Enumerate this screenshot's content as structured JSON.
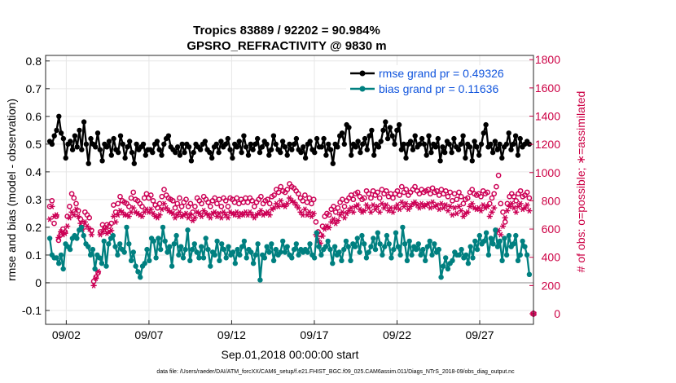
{
  "chart_data": {
    "type": "line",
    "title_line1": "Tropics 83889 / 92202 = 90.984%",
    "title_line2": "GPSRO_REFRACTIVITY @ 9830 m",
    "ylabel_left": "rmse and bias (model - observation)",
    "ylabel_right": "# of obs: o=possible; ∗=assimilated",
    "xlabel": "Sep.01,2018 00:00:00 start",
    "footer": "data file: /Users/raeder/DAI/ATM_forcXX/CAM6_setup/f.e21.FHIST_BGC.f09_025.CAM6assim.011/Diags_NTrS_2018-09/obs_diag_output.nc",
    "left_ylim": [
      -0.15,
      0.82
    ],
    "left_yticks": [
      "0.8",
      "0.7",
      "0.6",
      "0.5",
      "0.4",
      "0.3",
      "0.2",
      "0.1",
      "0",
      "-0.1"
    ],
    "left_ytick_values": [
      0.8,
      0.7,
      0.6,
      0.5,
      0.4,
      0.3,
      0.2,
      0.1,
      0,
      -0.1
    ],
    "right_ylim": [
      -75,
      1830
    ],
    "right_yticks": [
      "1800",
      "1600",
      "1400",
      "1200",
      "1000",
      "800",
      "600",
      "400",
      "200",
      "0"
    ],
    "right_ytick_values": [
      1800,
      1600,
      1400,
      1200,
      1000,
      800,
      600,
      400,
      200,
      0
    ],
    "xlim_days": [
      0.75,
      30.25
    ],
    "xticks": [
      "09/02",
      "09/07",
      "09/12",
      "09/17",
      "09/22",
      "09/27"
    ],
    "xtick_days": [
      2,
      7,
      12,
      17,
      22,
      27
    ],
    "grid": true,
    "legend_position": "top-right",
    "zero_line": 0,
    "series": [
      {
        "name": "rmse grand pr = 0.49326",
        "axis": "left",
        "color": "#000000",
        "marker": "dot",
        "values": [
          0.51,
          0.5,
          0.53,
          0.55,
          0.6,
          0.54,
          0.52,
          0.45,
          0.5,
          0.51,
          0.48,
          0.53,
          0.49,
          0.55,
          0.48,
          0.58,
          0.5,
          0.43,
          0.52,
          0.5,
          0.49,
          0.54,
          0.48,
          0.44,
          0.5,
          0.49,
          0.51,
          0.46,
          0.52,
          0.48,
          0.47,
          0.53,
          0.5,
          0.45,
          0.49,
          0.51,
          0.47,
          0.43,
          0.5,
          0.48,
          0.49,
          0.5,
          0.46,
          0.48,
          0.48,
          0.47,
          0.5,
          0.51,
          0.48,
          0.46,
          0.5,
          0.52,
          0.53,
          0.49,
          0.48,
          0.47,
          0.49,
          0.46,
          0.5,
          0.47,
          0.5,
          0.49,
          0.44,
          0.47,
          0.5,
          0.49,
          0.48,
          0.5,
          0.51,
          0.48,
          0.47,
          0.45,
          0.49,
          0.5,
          0.47,
          0.51,
          0.49,
          0.5,
          0.52,
          0.48,
          0.45,
          0.5,
          0.49,
          0.51,
          0.47,
          0.53,
          0.49,
          0.46,
          0.5,
          0.48,
          0.5,
          0.52,
          0.47,
          0.49,
          0.51,
          0.5,
          0.46,
          0.48,
          0.53,
          0.5,
          0.48,
          0.47,
          0.51,
          0.49,
          0.46,
          0.5,
          0.48,
          0.5,
          0.52,
          0.48,
          0.47,
          0.49,
          0.45,
          0.5,
          0.51,
          0.48,
          0.47,
          0.52,
          0.49,
          0.49,
          0.52,
          0.46,
          0.5,
          0.48,
          0.43,
          0.5,
          0.49,
          0.53,
          0.54,
          0.5,
          0.57,
          0.56,
          0.46,
          0.5,
          0.49,
          0.51,
          0.47,
          0.5,
          0.52,
          0.48,
          0.53,
          0.55,
          0.46,
          0.5,
          0.49,
          0.51,
          0.55,
          0.58,
          0.52,
          0.56,
          0.53,
          0.5,
          0.55,
          0.57,
          0.48,
          0.5,
          0.45,
          0.5,
          0.51,
          0.48,
          0.53,
          0.49,
          0.5,
          0.52,
          0.5,
          0.46,
          0.53,
          0.47,
          0.5,
          0.49,
          0.52,
          0.44,
          0.49,
          0.47,
          0.51,
          0.5,
          0.47,
          0.52,
          0.49,
          0.48,
          0.5,
          0.53,
          0.45,
          0.5,
          0.49,
          0.44,
          0.51,
          0.49,
          0.46,
          0.5,
          0.54,
          0.57,
          0.49,
          0.5,
          0.47,
          0.51,
          0.48,
          0.5,
          0.45,
          0.49,
          0.5,
          0.54,
          0.48,
          0.5,
          0.53,
          0.46,
          0.52,
          0.49,
          0.5,
          0.51,
          0.5
        ]
      },
      {
        "name": "bias grand pr = 0.11636",
        "axis": "left",
        "color": "#008080",
        "marker": "dot",
        "values": [
          0.16,
          0.1,
          0.09,
          0.09,
          0.07,
          0.1,
          0.05,
          0.14,
          0.13,
          0.12,
          0.16,
          0.17,
          0.16,
          0.19,
          0.2,
          0.17,
          0.14,
          0.13,
          0.1,
          0.12,
          0.05,
          0.1,
          0.09,
          0.07,
          0.15,
          0.06,
          0.14,
          0.16,
          0.17,
          0.13,
          0.1,
          0.14,
          0.12,
          0.11,
          0.2,
          0.14,
          0.08,
          0.11,
          0.06,
          0.04,
          0.02,
          0.06,
          0.07,
          0.12,
          0.08,
          0.16,
          0.15,
          0.09,
          0.16,
          0.12,
          0.2,
          0.15,
          0.11,
          0.13,
          0.06,
          0.14,
          0.17,
          0.1,
          0.13,
          0.09,
          0.12,
          0.19,
          0.08,
          0.12,
          0.14,
          0.11,
          0.09,
          0.13,
          0.09,
          0.16,
          0.12,
          0.06,
          0.11,
          0.1,
          0.15,
          0.08,
          0.14,
          0.12,
          0.09,
          0.13,
          0.1,
          0.11,
          0.07,
          0.12,
          0.1,
          0.13,
          0.15,
          0.09,
          0.12,
          0.11,
          0.07,
          0.1,
          0.14,
          0.01,
          0.1,
          0.09,
          0.13,
          0.11,
          0.14,
          0.08,
          0.12,
          0.1,
          0.11,
          0.15,
          0.11,
          0.13,
          0.1,
          0.09,
          0.12,
          0.14,
          0.1,
          0.12,
          0.11,
          0.12,
          0.11,
          0.14,
          0.1,
          0.09,
          0.18,
          0.13,
          0.1,
          0.12,
          0.13,
          0.15,
          0.12,
          0.07,
          0.13,
          0.1,
          0.11,
          0.08,
          0.12,
          0.15,
          0.13,
          0.08,
          0.14,
          0.13,
          0.16,
          0.11,
          0.17,
          0.14,
          0.09,
          0.11,
          0.13,
          0.16,
          0.12,
          0.18,
          0.14,
          0.1,
          0.13,
          0.17,
          0.14,
          0.09,
          0.12,
          0.18,
          0.13,
          0.1,
          0.2,
          0.14,
          0.08,
          0.15,
          0.1,
          0.13,
          0.12,
          0.14,
          0.1,
          0.12,
          0.08,
          0.13,
          0.15,
          0.1,
          0.14,
          0.11,
          0.12,
          0.02,
          0.06,
          0.09,
          0.05,
          0.07,
          0.08,
          0.11,
          0.1,
          0.1,
          0.12,
          0.09,
          0.1,
          0.07,
          0.13,
          0.09,
          0.15,
          0.12,
          0.17,
          0.14,
          0.15,
          0.18,
          0.1,
          0.16,
          0.14,
          0.19,
          0.13,
          0.15,
          0.08,
          0.16,
          0.1,
          0.17,
          0.13,
          0.14,
          0.17,
          0.08,
          0.1,
          0.15,
          0.13,
          0.1,
          0.03
        ]
      },
      {
        "name": "possible",
        "axis": "right",
        "color": "#cc0055",
        "marker": "circle",
        "values": [
          760,
          800,
          640,
          690,
          520,
          560,
          600,
          580,
          690,
          760,
          850,
          820,
          780,
          730,
          670,
          640,
          720,
          700,
          680,
          590,
          230,
          260,
          290,
          580,
          630,
          610,
          630,
          620,
          640,
          770,
          720,
          780,
          830,
          800,
          790,
          780,
          760,
          820,
          860,
          810,
          800,
          780,
          760,
          820,
          850,
          820,
          840,
          800,
          770,
          750,
          780,
          830,
          880,
          840,
          820,
          810,
          800,
          750,
          780,
          820,
          760,
          790,
          810,
          760,
          780,
          720,
          760,
          820,
          800,
          780,
          830,
          810,
          790,
          760,
          800,
          820,
          780,
          810,
          760,
          820,
          800,
          760,
          820,
          810,
          790,
          820,
          780,
          810,
          790,
          820,
          790,
          820,
          800,
          760,
          790,
          810,
          830,
          780,
          800,
          810,
          780,
          830,
          840,
          880,
          860,
          900,
          870,
          860,
          880,
          920,
          900,
          890,
          870,
          850,
          820,
          800,
          840,
          790,
          820,
          780,
          810,
          650,
          580,
          560,
          620,
          690,
          710,
          700,
          740,
          760,
          720,
          750,
          790,
          810,
          760,
          800,
          820,
          840,
          810,
          850,
          860,
          830,
          810,
          820,
          870,
          850,
          820,
          870,
          840,
          860,
          820,
          880,
          850,
          870,
          830,
          850,
          820,
          850,
          870,
          840,
          900,
          860,
          880,
          840,
          860,
          880,
          900,
          870,
          850,
          880,
          860,
          870,
          880,
          850,
          890,
          860,
          870,
          840,
          880,
          850,
          870,
          830,
          860,
          800,
          850,
          810,
          860,
          830,
          780,
          810,
          820,
          860,
          880,
          850,
          840,
          850,
          830,
          870,
          850,
          860,
          780,
          820,
          850,
          900,
          980,
          780,
          720,
          650,
          780,
          830,
          850,
          830,
          800,
          850,
          870,
          830,
          840,
          860,
          820
        ]
      },
      {
        "name": "assimilated",
        "axis": "right",
        "color": "#cc0055",
        "marker": "asterisk",
        "values": [
          670,
          760,
          690,
          700,
          540,
          580,
          560,
          570,
          620,
          680,
          720,
          700,
          740,
          690,
          640,
          600,
          650,
          620,
          600,
          560,
          200,
          250,
          300,
          560,
          580,
          600,
          570,
          580,
          590,
          690,
          650,
          700,
          730,
          720,
          700,
          700,
          690,
          720,
          750,
          720,
          710,
          700,
          690,
          720,
          740,
          720,
          740,
          710,
          690,
          680,
          700,
          740,
          780,
          750,
          730,
          720,
          710,
          680,
          700,
          720,
          690,
          700,
          710,
          680,
          700,
          660,
          680,
          720,
          710,
          690,
          730,
          710,
          700,
          680,
          710,
          720,
          690,
          710,
          680,
          720,
          700,
          680,
          720,
          710,
          700,
          720,
          690,
          710,
          700,
          720,
          700,
          720,
          700,
          680,
          700,
          710,
          730,
          700,
          710,
          720,
          700,
          740,
          750,
          780,
          760,
          800,
          770,
          760,
          780,
          820,
          800,
          790,
          770,
          750,
          720,
          700,
          740,
          700,
          720,
          690,
          710,
          560,
          520,
          500,
          550,
          600,
          620,
          610,
          650,
          670,
          640,
          660,
          700,
          720,
          680,
          710,
          730,
          750,
          720,
          760,
          770,
          740,
          720,
          730,
          770,
          750,
          720,
          770,
          740,
          760,
          720,
          780,
          750,
          770,
          730,
          750,
          720,
          750,
          770,
          740,
          790,
          760,
          780,
          740,
          760,
          780,
          790,
          770,
          750,
          780,
          760,
          770,
          780,
          750,
          790,
          760,
          770,
          740,
          780,
          750,
          770,
          730,
          760,
          700,
          750,
          710,
          760,
          730,
          690,
          710,
          720,
          760,
          780,
          750,
          740,
          750,
          730,
          770,
          750,
          760,
          690,
          720,
          750,
          580,
          590,
          560,
          620,
          680,
          730,
          760,
          780,
          750,
          720,
          760,
          780,
          740,
          750,
          770,
          730
        ]
      }
    ]
  }
}
